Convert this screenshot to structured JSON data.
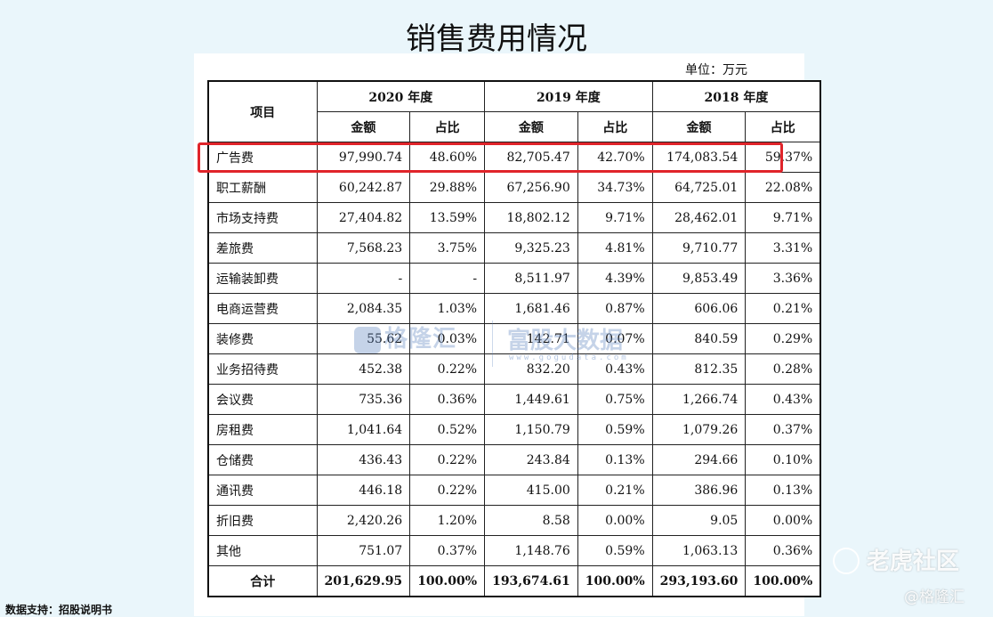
{
  "title": "销售费用情况",
  "unit": "单位：万元",
  "table": {
    "header_item": "项目",
    "years": [
      "2020 年度",
      "2019 年度",
      "2018 年度"
    ],
    "sub_headers": [
      "金额",
      "占比",
      "金额",
      "占比",
      "金额",
      "占比"
    ],
    "rows": [
      [
        "广告费",
        "97,990.74",
        "48.60%",
        "82,705.47",
        "42.70%",
        "174,083.54",
        "59.37%"
      ],
      [
        "职工薪酬",
        "60,242.87",
        "29.88%",
        "67,256.90",
        "34.73%",
        "64,725.01",
        "22.08%"
      ],
      [
        "市场支持费",
        "27,404.82",
        "13.59%",
        "18,802.12",
        "9.71%",
        "28,462.01",
        "9.71%"
      ],
      [
        "差旅费",
        "7,568.23",
        "3.75%",
        "9,325.23",
        "4.81%",
        "9,710.77",
        "3.31%"
      ],
      [
        "运输装卸费",
        "-",
        "-",
        "8,511.97",
        "4.39%",
        "9,853.49",
        "3.36%"
      ],
      [
        "电商运营费",
        "2,084.35",
        "1.03%",
        "1,681.46",
        "0.87%",
        "606.06",
        "0.21%"
      ],
      [
        "装修费",
        "55.62",
        "0.03%",
        "142.71",
        "0.07%",
        "840.59",
        "0.29%"
      ],
      [
        "业务招待费",
        "452.38",
        "0.22%",
        "832.20",
        "0.43%",
        "812.35",
        "0.28%"
      ],
      [
        "会议费",
        "735.36",
        "0.36%",
        "1,449.61",
        "0.75%",
        "1,266.74",
        "0.43%"
      ],
      [
        "房租费",
        "1,041.64",
        "0.52%",
        "1,150.79",
        "0.59%",
        "1,079.26",
        "0.37%"
      ],
      [
        "仓储费",
        "436.43",
        "0.22%",
        "243.84",
        "0.13%",
        "294.66",
        "0.10%"
      ],
      [
        "通讯费",
        "446.18",
        "0.22%",
        "415.00",
        "0.21%",
        "386.96",
        "0.13%"
      ],
      [
        "折旧费",
        "2,420.26",
        "1.20%",
        "8.58",
        "0.00%",
        "9.05",
        "0.00%"
      ],
      [
        "其他",
        "751.07",
        "0.37%",
        "1,148.76",
        "0.59%",
        "1,063.13",
        "0.36%"
      ]
    ],
    "total": [
      "合计",
      "201,629.95",
      "100.00%",
      "193,674.61",
      "100.00%",
      "293,193.60",
      "100.00%"
    ]
  },
  "highlight_color": "#e0242a",
  "watermark": {
    "brand": "格隆汇",
    "partner": "富股大数据",
    "url": "www.gogudata.com"
  },
  "source": "数据支持：招股说明书",
  "corner": {
    "tiger": "老虎社区",
    "glh": "@格隆汇"
  }
}
